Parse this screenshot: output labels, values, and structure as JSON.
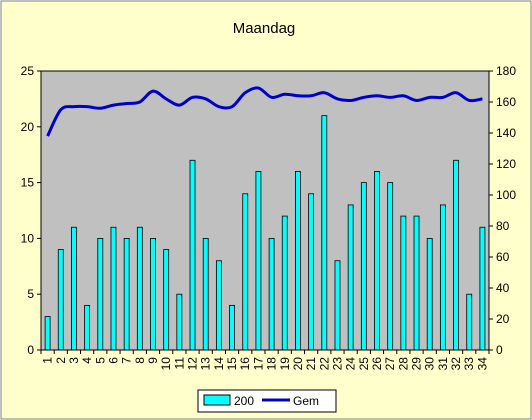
{
  "chart_data": {
    "type": "bar",
    "title": "Maandag",
    "categories": [
      "1",
      "2",
      "3",
      "4",
      "5",
      "6",
      "7",
      "8",
      "9",
      "10",
      "11",
      "12",
      "13",
      "14",
      "15",
      "16",
      "17",
      "18",
      "19",
      "20",
      "21",
      "22",
      "23",
      "24",
      "25",
      "26",
      "27",
      "28",
      "29",
      "30",
      "31",
      "32",
      "33",
      "34"
    ],
    "series": [
      {
        "name": "200",
        "type": "bar",
        "axis": "left",
        "color": "#00ffff",
        "values": [
          3,
          9,
          11,
          4,
          10,
          11,
          10,
          11,
          10,
          9,
          5,
          17,
          10,
          8,
          4,
          14,
          16,
          10,
          12,
          16,
          14,
          21,
          8,
          13,
          15,
          16,
          15,
          12,
          12,
          10,
          13,
          17,
          5,
          11
        ]
      },
      {
        "name": "Gem",
        "type": "line",
        "axis": "right",
        "color": "#0000cc",
        "values": [
          138,
          155,
          157,
          157,
          156,
          158,
          159,
          160,
          167,
          162,
          158,
          163,
          162,
          157,
          157,
          166,
          169,
          163,
          165,
          164,
          164,
          166,
          162,
          161,
          163,
          164,
          163,
          164,
          161,
          163,
          163,
          166,
          161,
          162
        ]
      }
    ],
    "y_left": {
      "min": 0,
      "max": 25,
      "ticks": [
        0,
        5,
        10,
        15,
        20,
        25
      ]
    },
    "y_right": {
      "min": 0,
      "max": 180,
      "ticks": [
        0,
        20,
        40,
        60,
        80,
        100,
        120,
        140,
        160,
        180
      ]
    },
    "grid": false,
    "legend": "bottom",
    "colors": {
      "chart_background": "#ffffcc",
      "plot_background": "#c0c0c0",
      "border": "#000000"
    }
  }
}
